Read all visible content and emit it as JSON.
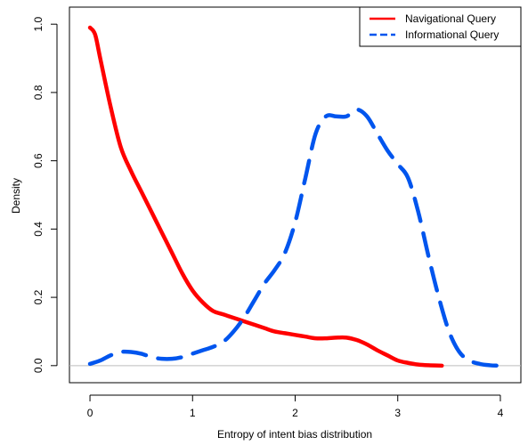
{
  "chart_data": {
    "type": "line",
    "title": "",
    "xlabel": "Entropy of intent bias distribution",
    "ylabel": "Density",
    "xlim": [
      -0.2,
      4.2
    ],
    "ylim": [
      -0.05,
      1.05
    ],
    "xticks": [
      0,
      1,
      2,
      3,
      4
    ],
    "yticks": [
      0.0,
      0.2,
      0.4,
      0.6,
      0.8,
      1.0
    ],
    "xtick_labels": [
      "0",
      "1",
      "2",
      "3",
      "4"
    ],
    "ytick_labels": [
      "0.0",
      "0.2",
      "0.4",
      "0.6",
      "0.8",
      "1.0"
    ],
    "grid": false,
    "legend_position": "top-right",
    "baseline": 0,
    "series": [
      {
        "name": "Navigational Query",
        "color": "#ff0000",
        "style": "solid",
        "x": [
          0,
          0.05,
          0.1,
          0.2,
          0.3,
          0.4,
          0.5,
          0.6,
          0.7,
          0.8,
          0.9,
          1.0,
          1.1,
          1.2,
          1.3,
          1.4,
          1.5,
          1.6,
          1.7,
          1.8,
          1.9,
          2.0,
          2.1,
          2.2,
          2.3,
          2.4,
          2.5,
          2.6,
          2.7,
          2.8,
          2.9,
          3.0,
          3.1,
          3.2,
          3.3,
          3.43
        ],
        "y": [
          0.99,
          0.97,
          0.9,
          0.76,
          0.64,
          0.57,
          0.51,
          0.45,
          0.39,
          0.33,
          0.27,
          0.22,
          0.185,
          0.16,
          0.15,
          0.14,
          0.13,
          0.12,
          0.11,
          0.1,
          0.095,
          0.09,
          0.085,
          0.08,
          0.08,
          0.082,
          0.082,
          0.075,
          0.062,
          0.045,
          0.03,
          0.015,
          0.008,
          0.003,
          0.001,
          0.0
        ]
      },
      {
        "name": "Informational Query",
        "color": "#0055ee",
        "style": "dashed",
        "x": [
          0,
          0.1,
          0.2,
          0.3,
          0.4,
          0.5,
          0.6,
          0.7,
          0.8,
          0.9,
          1.0,
          1.1,
          1.2,
          1.3,
          1.4,
          1.5,
          1.6,
          1.7,
          1.8,
          1.9,
          2.0,
          2.1,
          2.2,
          2.3,
          2.4,
          2.5,
          2.6,
          2.7,
          2.8,
          2.9,
          3.0,
          3.1,
          3.2,
          3.3,
          3.4,
          3.5,
          3.6,
          3.7,
          3.8,
          3.9,
          3.97
        ],
        "y": [
          0.005,
          0.015,
          0.03,
          0.04,
          0.04,
          0.035,
          0.025,
          0.02,
          0.02,
          0.025,
          0.035,
          0.045,
          0.055,
          0.07,
          0.1,
          0.14,
          0.19,
          0.24,
          0.28,
          0.33,
          0.42,
          0.55,
          0.68,
          0.73,
          0.73,
          0.73,
          0.75,
          0.73,
          0.68,
          0.63,
          0.59,
          0.55,
          0.45,
          0.32,
          0.2,
          0.1,
          0.04,
          0.015,
          0.005,
          0.001,
          0.0
        ]
      }
    ]
  }
}
